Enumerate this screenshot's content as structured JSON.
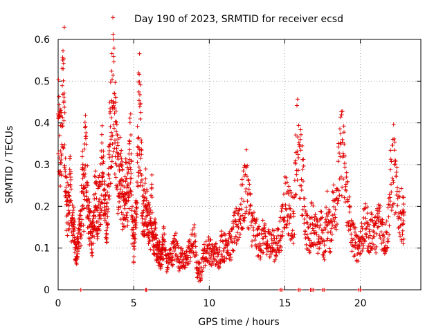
{
  "chart_data": {
    "type": "scatter",
    "title": "Day 190 of 2023, SRMTID for receiver ecsd",
    "xlabel": "GPS time / hours",
    "ylabel": "SRMTID / TECUs",
    "xlim": [
      0,
      24
    ],
    "ylim": [
      0,
      0.6
    ],
    "xticks": [
      0,
      5,
      10,
      15,
      20
    ],
    "yticks": [
      0,
      0.1,
      0.2,
      0.3,
      0.4,
      0.5,
      0.6
    ],
    "grid": true,
    "marker": "+",
    "color": "#e00000",
    "series": [
      {
        "name": "SRMTID",
        "x": [
          0.0,
          0.1,
          0.2,
          0.3,
          0.4,
          0.5,
          0.6,
          0.7,
          0.8,
          0.9,
          1.0,
          1.1,
          1.2,
          1.3,
          1.4,
          1.5,
          1.6,
          1.7,
          1.8,
          1.9,
          2.0,
          2.1,
          2.2,
          2.3,
          2.4,
          2.5,
          2.6,
          2.7,
          2.8,
          2.9,
          3.0,
          3.1,
          3.2,
          3.3,
          3.4,
          3.5,
          3.6,
          3.7,
          3.8,
          3.9,
          4.0,
          4.1,
          4.2,
          4.3,
          4.4,
          4.5,
          4.6,
          4.7,
          4.8,
          4.9,
          5.0,
          5.1,
          5.2,
          5.3,
          5.4,
          5.5,
          5.6,
          5.7,
          5.8,
          5.9,
          6.0,
          6.1,
          6.2,
          6.3,
          6.4,
          6.5,
          6.6,
          6.7,
          6.8,
          6.9,
          7.0,
          7.2,
          7.4,
          7.6,
          7.8,
          8.0,
          8.2,
          8.4,
          8.6,
          8.8,
          9.0,
          9.2,
          9.4,
          9.6,
          9.8,
          10.0,
          10.2,
          10.4,
          10.6,
          10.8,
          11.0,
          11.2,
          11.4,
          11.6,
          11.8,
          12.0,
          12.2,
          12.4,
          12.6,
          12.8,
          13.0,
          13.2,
          13.4,
          13.6,
          13.8,
          14.0,
          14.2,
          14.4,
          14.6,
          14.8,
          15.0,
          15.2,
          15.4,
          15.6,
          15.8,
          16.0,
          16.2,
          16.4,
          16.6,
          16.8,
          17.0,
          17.2,
          17.4,
          17.6,
          17.8,
          18.0,
          18.2,
          18.4,
          18.6,
          18.8,
          19.0,
          19.2,
          19.4,
          19.6,
          19.8,
          20.0,
          20.2,
          20.4,
          20.6,
          20.8,
          21.0,
          21.2,
          21.4,
          21.6,
          21.8,
          22.0,
          22.2,
          22.4,
          22.6,
          22.8
        ],
        "y": [
          0.38,
          0.35,
          0.33,
          0.45,
          0.5,
          0.22,
          0.2,
          0.18,
          0.27,
          0.15,
          0.17,
          0.12,
          0.08,
          0.1,
          0.16,
          0.14,
          0.25,
          0.21,
          0.34,
          0.26,
          0.18,
          0.15,
          0.13,
          0.12,
          0.2,
          0.22,
          0.17,
          0.23,
          0.21,
          0.3,
          0.26,
          0.18,
          0.16,
          0.2,
          0.33,
          0.4,
          0.5,
          0.45,
          0.38,
          0.3,
          0.25,
          0.28,
          0.24,
          0.2,
          0.18,
          0.26,
          0.22,
          0.27,
          0.35,
          0.15,
          0.1,
          0.18,
          0.2,
          0.4,
          0.45,
          0.3,
          0.2,
          0.18,
          0.22,
          0.17,
          0.16,
          0.14,
          0.22,
          0.12,
          0.13,
          0.1,
          0.08,
          0.09,
          0.07,
          0.1,
          0.12,
          0.06,
          0.08,
          0.09,
          0.11,
          0.07,
          0.08,
          0.06,
          0.09,
          0.1,
          0.12,
          0.05,
          0.04,
          0.08,
          0.09,
          0.1,
          0.08,
          0.09,
          0.07,
          0.11,
          0.1,
          0.12,
          0.1,
          0.13,
          0.15,
          0.18,
          0.2,
          0.26,
          0.22,
          0.16,
          0.14,
          0.12,
          0.11,
          0.13,
          0.1,
          0.12,
          0.11,
          0.1,
          0.12,
          0.15,
          0.22,
          0.2,
          0.18,
          0.16,
          0.35,
          0.3,
          0.25,
          0.15,
          0.12,
          0.17,
          0.14,
          0.12,
          0.15,
          0.1,
          0.18,
          0.13,
          0.2,
          0.22,
          0.28,
          0.35,
          0.25,
          0.2,
          0.13,
          0.12,
          0.1,
          0.12,
          0.14,
          0.16,
          0.12,
          0.15,
          0.13,
          0.17,
          0.15,
          0.12,
          0.14,
          0.25,
          0.3,
          0.22,
          0.19,
          0.17
        ]
      }
    ],
    "zero_markers_x": [
      1.5,
      5.8,
      5.85,
      14.7,
      14.8,
      15.9,
      16.0,
      16.7,
      16.8,
      16.9,
      17.5,
      17.6,
      19.9,
      20.0
    ]
  }
}
